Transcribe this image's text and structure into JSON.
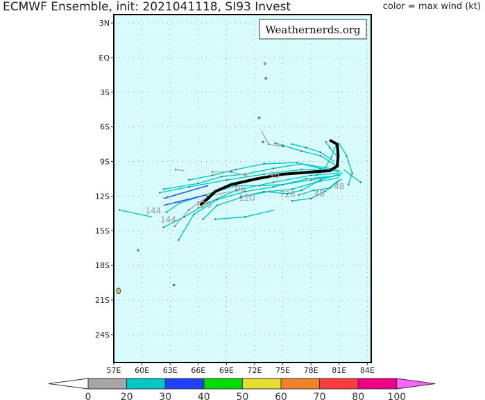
{
  "title": "ECMWF Ensemble, init: 2021041118, SI93 Invest",
  "legend_note": "color = max wind (kt)",
  "watermark": "Weathernerds.org",
  "map": {
    "lon_range": [
      57,
      84.5
    ],
    "lat_range": [
      -26.5,
      3.7
    ],
    "background": "#d8fbfc",
    "lon_ticks": [
      "57E",
      "60E",
      "63E",
      "66E",
      "69E",
      "72E",
      "75E",
      "78E",
      "81E",
      "84E"
    ],
    "lat_ticks": [
      "3N",
      "EQ",
      "3S",
      "6S",
      "9S",
      "12S",
      "15S",
      "18S",
      "21S",
      "24S"
    ]
  },
  "colorbar": {
    "bins": [
      {
        "label": "0",
        "color": "#a6a6a6"
      },
      {
        "label": "20",
        "color": "#00c8c8"
      },
      {
        "label": "30",
        "color": "#2040ff"
      },
      {
        "label": "40",
        "color": "#00dc00"
      },
      {
        "label": "50",
        "color": "#e6dc32"
      },
      {
        "label": "60",
        "color": "#f08228"
      },
      {
        "label": "70",
        "color": "#fa3c3c"
      },
      {
        "label": "80",
        "color": "#f00082"
      }
    ],
    "end_label": "100",
    "over_color": "#ff64ff",
    "under_color": "#ffffff"
  },
  "tracks": [
    {
      "c": 1,
      "pts": [
        [
          81,
          -10
        ],
        [
          78,
          -10.2
        ],
        [
          74,
          -10.8
        ],
        [
          70,
          -11.5
        ],
        [
          67,
          -12.6
        ],
        [
          64.5,
          -13.8
        ],
        [
          62.3,
          -14.7
        ]
      ]
    },
    {
      "c": 1,
      "pts": [
        [
          81,
          -9.8
        ],
        [
          77,
          -9.7
        ],
        [
          73,
          -10.1
        ],
        [
          69,
          -10.6
        ],
        [
          65,
          -11.2
        ],
        [
          61.9,
          -11.7
        ]
      ]
    },
    {
      "c": 1,
      "pts": [
        [
          81.2,
          -10.2
        ],
        [
          77.5,
          -10.5
        ],
        [
          74,
          -11.2
        ],
        [
          71,
          -11.6
        ],
        [
          68,
          -12.3
        ],
        [
          65.5,
          -13.6
        ],
        [
          63.9,
          -15.8
        ]
      ]
    },
    {
      "c": 1,
      "pts": [
        [
          80.8,
          -9.7
        ],
        [
          77,
          -9.2
        ],
        [
          74,
          -9.6
        ],
        [
          71,
          -10.1
        ],
        [
          68.5,
          -10.3
        ],
        [
          66,
          -10.9
        ],
        [
          62.3,
          -11.4
        ]
      ]
    },
    {
      "c": 1,
      "pts": [
        [
          81,
          -10.4
        ],
        [
          78.5,
          -10.8
        ],
        [
          76,
          -11.4
        ],
        [
          73.5,
          -11.6
        ],
        [
          71,
          -12
        ],
        [
          68,
          -12.8
        ],
        [
          66.5,
          -14
        ]
      ]
    },
    {
      "c": 1,
      "pts": [
        [
          81.4,
          -10
        ],
        [
          79,
          -10.6
        ],
        [
          77,
          -11.5
        ],
        [
          75.5,
          -11.8
        ],
        [
          73,
          -11.6
        ],
        [
          70.5,
          -12.1
        ]
      ]
    },
    {
      "c": 1,
      "pts": [
        [
          81,
          -9.5
        ],
        [
          79,
          -8.5
        ],
        [
          77,
          -8.1
        ],
        [
          75,
          -7.6
        ],
        [
          74.2,
          -7.4
        ]
      ]
    },
    {
      "c": 1,
      "pts": [
        [
          81.5,
          -9.7
        ],
        [
          82.3,
          -10.2
        ],
        [
          83.3,
          -10.8
        ]
      ]
    },
    {
      "c": 1,
      "pts": [
        [
          81,
          -10.6
        ],
        [
          79.5,
          -11.6
        ],
        [
          78,
          -12.2
        ],
        [
          76,
          -12.4
        ]
      ]
    },
    {
      "c": 1,
      "pts": [
        [
          74.1,
          -13.2
        ],
        [
          71,
          -13.8
        ],
        [
          67.8,
          -14
        ]
      ]
    },
    {
      "c": 1,
      "pts": [
        [
          61.1,
          -13.8
        ],
        [
          57.6,
          -13.2
        ]
      ]
    },
    {
      "c": 1,
      "pts": [
        [
          80.5,
          -9
        ],
        [
          79,
          -8.2
        ],
        [
          77.5,
          -7.8
        ],
        [
          76,
          -7.5
        ]
      ]
    },
    {
      "c": 1,
      "pts": [
        [
          81,
          -7.4
        ],
        [
          81.8,
          -8.5
        ],
        [
          82.4,
          -10
        ],
        [
          82,
          -11
        ]
      ]
    },
    {
      "c": 1,
      "pts": [
        [
          80.7,
          -7.5
        ],
        [
          80.2,
          -8.6
        ],
        [
          79.4,
          -9.7
        ],
        [
          78.6,
          -10.2
        ]
      ]
    },
    {
      "c": 1,
      "pts": [
        [
          81.2,
          -9.9
        ],
        [
          79,
          -9.6
        ],
        [
          76.5,
          -9.1
        ],
        [
          73,
          -9.2
        ],
        [
          70,
          -9.7
        ],
        [
          67.5,
          -10.2
        ],
        [
          65,
          -10.6
        ]
      ]
    },
    {
      "c": 1,
      "pts": [
        [
          81,
          -10.2
        ],
        [
          78,
          -10.6
        ],
        [
          75,
          -11
        ],
        [
          72.5,
          -11.1
        ],
        [
          70,
          -11.1
        ],
        [
          67.5,
          -11.7
        ],
        [
          64,
          -12.6
        ],
        [
          62.6,
          -13.4
        ]
      ]
    },
    {
      "c": 1,
      "pts": [
        [
          81.3,
          -10.5
        ],
        [
          80,
          -11.3
        ],
        [
          78.3,
          -11.5
        ],
        [
          76.7,
          -11.9
        ]
      ]
    },
    {
      "c": 1,
      "pts": [
        [
          80.9,
          -8.7
        ],
        [
          80,
          -7.8
        ],
        [
          79.6,
          -7.3
        ]
      ]
    },
    {
      "c": 0,
      "pts": [
        [
          72.7,
          -6.3
        ],
        [
          73.5,
          -7.5
        ],
        [
          75,
          -7.7
        ]
      ]
    },
    {
      "c": 0,
      "pts": [
        [
          71.5,
          -10.3
        ],
        [
          69.5,
          -9.9
        ],
        [
          67.5,
          -9.9
        ]
      ]
    },
    {
      "c": 0,
      "pts": [
        [
          69.5,
          -11.6
        ],
        [
          67,
          -12
        ],
        [
          65,
          -13.2
        ],
        [
          63.5,
          -14.6
        ]
      ]
    },
    {
      "c": 0,
      "pts": [
        [
          64.5,
          -9.8
        ],
        [
          63.6,
          -9.7
        ]
      ]
    },
    {
      "c": 2,
      "pts": [
        [
          62.3,
          -12.2
        ],
        [
          67,
          -11.1
        ]
      ]
    },
    {
      "c": 2,
      "pts": [
        [
          62.3,
          -12.8
        ],
        [
          66.8,
          -11.9
        ]
      ]
    }
  ],
  "mean_track": [
    [
      80.1,
      -7.2
    ],
    [
      80.8,
      -7.5
    ],
    [
      80.9,
      -8.5
    ],
    [
      80.8,
      -9.4
    ],
    [
      80,
      -9.8
    ],
    [
      77.4,
      -9.95
    ],
    [
      75,
      -10.1
    ],
    [
      72.2,
      -10.5
    ],
    [
      69.5,
      -11
    ],
    [
      67.8,
      -11.6
    ],
    [
      66.9,
      -12.3
    ],
    [
      66.3,
      -12.7
    ]
  ],
  "labels": [
    {
      "text": "144",
      "lon": 61.2,
      "lat": -13.5
    },
    {
      "text": "144",
      "lon": 62.8,
      "lat": -14.3
    },
    {
      "text": "120",
      "lon": 71.2,
      "lat": -12.4
    },
    {
      "text": "96",
      "lon": 70.5,
      "lat": -11.6
    },
    {
      "text": "726",
      "lon": 75.5,
      "lat": -12.1
    },
    {
      "text": "96",
      "lon": 74.1,
      "lat": -10.4
    },
    {
      "text": "48",
      "lon": 78.9,
      "lat": -12
    },
    {
      "text": "48",
      "lon": 81,
      "lat": -11.4
    },
    {
      "text": "120",
      "lon": 66.6,
      "lat": -13.0
    }
  ],
  "islands": [
    [
      73.1,
      -0.5
    ],
    [
      73.2,
      -1.8
    ],
    [
      72.5,
      -5.2
    ],
    [
      72.9,
      -7.3
    ],
    [
      57.5,
      -20.2
    ],
    [
      63.4,
      -19.7
    ],
    [
      59.6,
      -16.7
    ]
  ]
}
